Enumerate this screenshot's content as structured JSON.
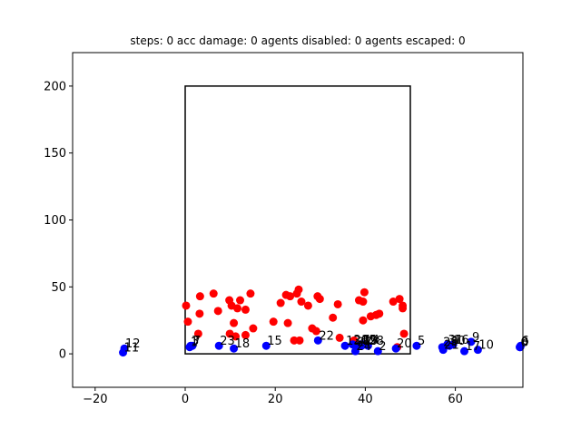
{
  "chart_data": {
    "type": "scatter",
    "title": "steps: 0   acc damage: 0   agents disabled: 0   agents escaped: 0",
    "xlabel": "",
    "ylabel": "",
    "xlim": [
      -25,
      75
    ],
    "ylim": [
      -25,
      225
    ],
    "xticks": [
      -20,
      0,
      20,
      40,
      60
    ],
    "yticks": [
      0,
      50,
      100,
      150,
      200
    ],
    "grid": false,
    "legend": "none",
    "box": {
      "x0": 0,
      "y0": 0,
      "x1": 50,
      "y1": 200
    },
    "colors": {
      "red": "#ff0000",
      "blue": "#0000ff"
    },
    "red_points": [
      [
        0.2,
        36
      ],
      [
        0.6,
        24
      ],
      [
        3.3,
        43
      ],
      [
        3.2,
        30
      ],
      [
        2.9,
        15
      ],
      [
        6.3,
        45
      ],
      [
        7.3,
        32
      ],
      [
        9.8,
        40
      ],
      [
        10.3,
        36
      ],
      [
        11.6,
        34
      ],
      [
        12.2,
        40
      ],
      [
        13.4,
        33
      ],
      [
        14.5,
        45
      ],
      [
        9.9,
        15
      ],
      [
        11.2,
        13
      ],
      [
        10.8,
        23
      ],
      [
        13.4,
        14
      ],
      [
        15.1,
        19
      ],
      [
        19.6,
        24
      ],
      [
        21.2,
        38
      ],
      [
        22.4,
        44
      ],
      [
        23.3,
        43
      ],
      [
        24.8,
        45
      ],
      [
        25.2,
        48
      ],
      [
        25.8,
        39
      ],
      [
        27.3,
        36
      ],
      [
        29.4,
        43
      ],
      [
        29.9,
        41
      ],
      [
        22.8,
        23
      ],
      [
        24.2,
        10
      ],
      [
        25.4,
        10
      ],
      [
        28.2,
        19
      ],
      [
        29.1,
        17
      ],
      [
        32.8,
        27
      ],
      [
        33.9,
        37
      ],
      [
        34.3,
        12
      ],
      [
        37.5,
        10
      ],
      [
        38.6,
        40
      ],
      [
        39.5,
        39
      ],
      [
        39.8,
        46
      ],
      [
        39.5,
        25
      ],
      [
        41.2,
        28
      ],
      [
        42.4,
        29
      ],
      [
        43.1,
        30
      ],
      [
        46.2,
        39
      ],
      [
        47.6,
        41
      ],
      [
        48.3,
        36
      ],
      [
        48.3,
        34
      ],
      [
        48.6,
        15
      ],
      [
        47.1,
        5
      ]
    ],
    "blue_points": [
      {
        "label": "0",
        "x": 74.3,
        "y": 5
      },
      {
        "label": "1",
        "x": 1,
        "y": 5
      },
      {
        "label": "2",
        "x": 42.8,
        "y": 2
      },
      {
        "label": "3",
        "x": 1.2,
        "y": 6
      },
      {
        "label": "4",
        "x": 38.5,
        "y": 6
      },
      {
        "label": "5",
        "x": 51.4,
        "y": 6
      },
      {
        "label": "6",
        "x": 74.5,
        "y": 6
      },
      {
        "label": "7",
        "x": 1.6,
        "y": 6
      },
      {
        "label": "8",
        "x": 74.4,
        "y": 5
      },
      {
        "label": "9",
        "x": 63.5,
        "y": 9
      },
      {
        "label": "10",
        "x": 65,
        "y": 3
      },
      {
        "label": "11",
        "x": -13.8,
        "y": 1
      },
      {
        "label": "12",
        "x": -13.5,
        "y": 4
      },
      {
        "label": "13",
        "x": 35.5,
        "y": 6
      },
      {
        "label": "14",
        "x": 39.6,
        "y": 7
      },
      {
        "label": "15",
        "x": 18,
        "y": 6
      },
      {
        "label": "16",
        "x": 59.5,
        "y": 7
      },
      {
        "label": "17",
        "x": 62,
        "y": 2
      },
      {
        "label": "18",
        "x": 10.8,
        "y": 4
      },
      {
        "label": "19",
        "x": 39.2,
        "y": 6
      },
      {
        "label": "20",
        "x": 46.8,
        "y": 4
      },
      {
        "label": "21",
        "x": 57.3,
        "y": 3
      },
      {
        "label": "22",
        "x": 29.5,
        "y": 10
      },
      {
        "label": "23",
        "x": 7.5,
        "y": 6
      },
      {
        "label": "24",
        "x": 37.8,
        "y": 2
      },
      {
        "label": "25",
        "x": 39,
        "y": 7
      },
      {
        "label": "26",
        "x": 37.2,
        "y": 7
      },
      {
        "label": "27",
        "x": 38,
        "y": 5
      },
      {
        "label": "28",
        "x": 40.6,
        "y": 6
      },
      {
        "label": "29",
        "x": 57.1,
        "y": 5
      },
      {
        "label": "30",
        "x": 58.7,
        "y": 6
      },
      {
        "label": "31",
        "x": 58.2,
        "y": 7
      }
    ],
    "point_labels_shown": [
      "0",
      "1",
      "2",
      "3",
      "4",
      "5",
      "6",
      "7",
      "8",
      "9",
      "10",
      "11",
      "12",
      "13",
      "14",
      "15",
      "16",
      "17",
      "18",
      "19",
      "20",
      "21",
      "22",
      "23",
      "24",
      "25",
      "26",
      "27",
      "28",
      "29",
      "30",
      "31"
    ]
  }
}
